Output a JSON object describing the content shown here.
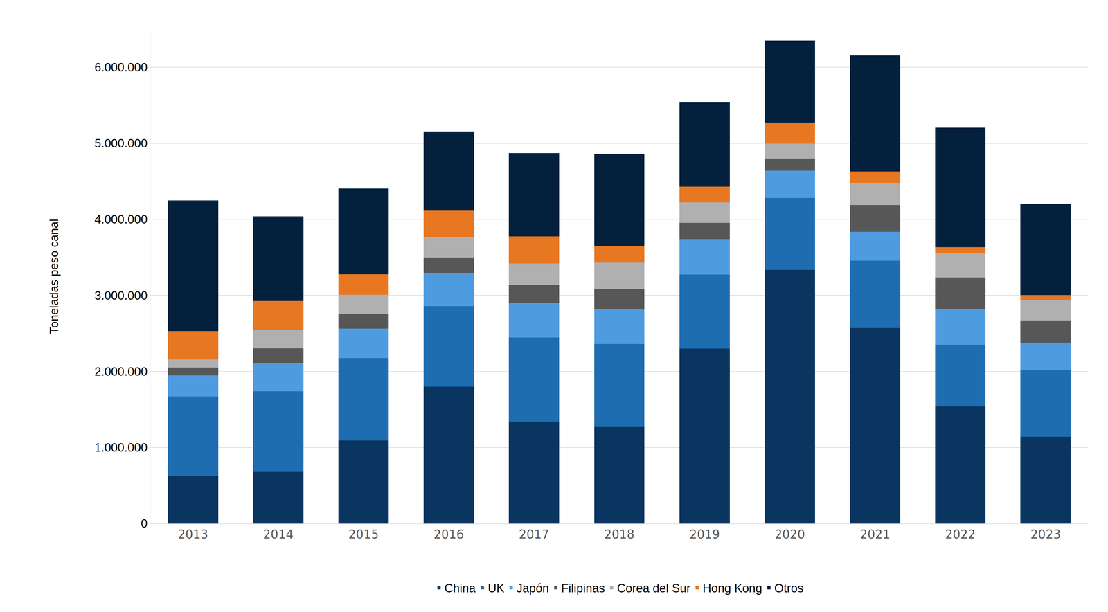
{
  "chart_data": {
    "type": "bar",
    "stacked": true,
    "grid": true,
    "legend": "bottom",
    "y_label": "Toneladas peso canal",
    "categories": [
      "2013",
      "2014",
      "2015",
      "2016",
      "2017",
      "2018",
      "2019",
      "2020",
      "2021",
      "2022",
      "2023"
    ],
    "ylim": [
      0,
      6500000
    ],
    "yticks": [
      {
        "value": 0,
        "label": "0"
      },
      {
        "value": 1000000,
        "label": "1.000.000"
      },
      {
        "value": 2000000,
        "label": "2.000.000"
      },
      {
        "value": 3000000,
        "label": "3.000.000"
      },
      {
        "value": 4000000,
        "label": "4.000.000"
      },
      {
        "value": 5000000,
        "label": "5.000.000"
      },
      {
        "value": 6000000,
        "label": "6.000.000"
      }
    ],
    "series": [
      {
        "name": "China",
        "color": "#0a3560",
        "values": [
          630000,
          680000,
          1090000,
          1800000,
          1340000,
          1270000,
          2300000,
          3335000,
          2570000,
          1540000,
          1140000
        ]
      },
      {
        "name": "UK",
        "color": "#1f6db1",
        "values": [
          1040000,
          1060000,
          1085000,
          1060000,
          1105000,
          1090000,
          975000,
          945000,
          885000,
          810000,
          875000
        ]
      },
      {
        "name": "Japón",
        "color": "#4f9be0",
        "values": [
          280000,
          370000,
          390000,
          435000,
          455000,
          455000,
          465000,
          360000,
          380000,
          475000,
          365000
        ]
      },
      {
        "name": "Filipinas",
        "color": "#575757",
        "values": [
          100000,
          195000,
          195000,
          205000,
          240000,
          270000,
          215000,
          160000,
          355000,
          410000,
          290000
        ]
      },
      {
        "name": "Corea del Sur",
        "color": "#b0b0b0",
        "values": [
          110000,
          240000,
          250000,
          270000,
          280000,
          345000,
          270000,
          195000,
          290000,
          325000,
          270000
        ]
      },
      {
        "name": "Hong Kong",
        "color": "#e87722",
        "values": [
          370000,
          380000,
          270000,
          345000,
          355000,
          215000,
          205000,
          280000,
          150000,
          75000,
          65000
        ]
      },
      {
        "name": "Otros",
        "color": "#03203d",
        "values": [
          1720000,
          1115000,
          1125000,
          1040000,
          1095000,
          1215000,
          1105000,
          1075000,
          1525000,
          1570000,
          1200000
        ]
      }
    ]
  }
}
